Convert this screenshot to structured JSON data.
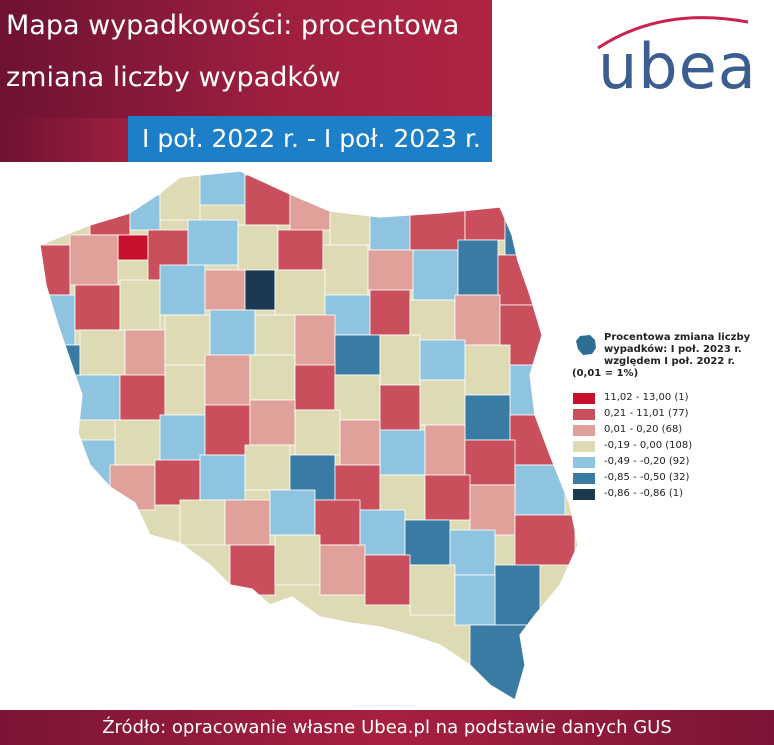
{
  "header": {
    "title_line1": "Mapa wypadkowości: procentowa",
    "title_line2": "zmiana liczby wypadków",
    "period": "I poł. 2022 r. - I poł. 2023 r."
  },
  "logo": {
    "text": "ubea",
    "icon": "ubea-logo-arc"
  },
  "legend": {
    "title": "Procentowa zmiana liczby wypadków: I poł. 2023 r. względem I poł. 2022 r.",
    "title_lines": [
      "Procentowa zmiana liczby",
      "wypadków: I poł. 2023 r.",
      "względem I poł. 2022 r."
    ],
    "unit_note": "(0,01 = 1%)",
    "icon": "poland-shape-icon",
    "classes": [
      {
        "label": "11,02 - 13,00 (1)",
        "color": "#c8102e"
      },
      {
        "label": "0,21 - 11,01 (77)",
        "color": "#c94f5c"
      },
      {
        "label": "0,01 - 0,20 (68)",
        "color": "#dfa19a"
      },
      {
        "label": "-0,19 - 0,00 (108)",
        "color": "#dddab4"
      },
      {
        "label": "-0,49 - -0,20 (92)",
        "color": "#8fc4e0"
      },
      {
        "label": "-0,85 - -0,50 (32)",
        "color": "#3a7ba3"
      },
      {
        "label": "-0,86 - -0,86 (1)",
        "color": "#1b3a52"
      }
    ]
  },
  "footer": {
    "source": "Źródło: opracowanie własne Ubea.pl na podstawie danych GUS"
  },
  "colors": {
    "header_red": "#9d1f3e",
    "period_blue": "#1d7fc7",
    "logo_blue": "#3b5d8f",
    "logo_arc": "#c8244d"
  }
}
